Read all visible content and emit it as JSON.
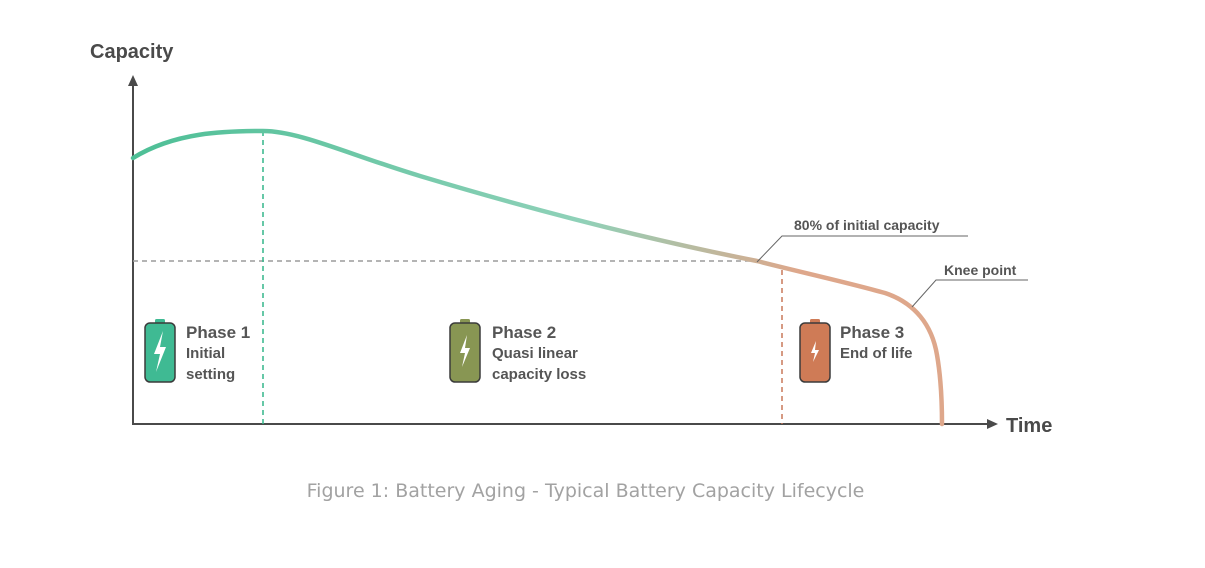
{
  "axes": {
    "y_label": "Capacity",
    "x_label": "Time"
  },
  "reference": {
    "threshold_label": "80% of initial capacity",
    "knee_label": "Knee point"
  },
  "phases": [
    {
      "title": "Phase 1",
      "desc_line1": "Initial",
      "desc_line2": "setting",
      "color": "#3fba93"
    },
    {
      "title": "Phase 2",
      "desc_line1": "Quasi linear",
      "desc_line2": "capacity loss",
      "color": "#889653"
    },
    {
      "title": "Phase 3",
      "desc_line1": "End of life",
      "desc_line2": "",
      "color": "#cf7b56"
    }
  ],
  "colors": {
    "curve_start": "#4dbf96",
    "curve_mid": "#8fd1b8",
    "curve_end": "#dea78b",
    "phase1_divider": "#34b58a",
    "phase3_divider": "#c9785a",
    "threshold_line": "#9b9b9b",
    "axis": "#4a4a4a"
  },
  "caption": "Figure 1: Battery Aging - Typical Battery Capacity Lifecycle"
}
